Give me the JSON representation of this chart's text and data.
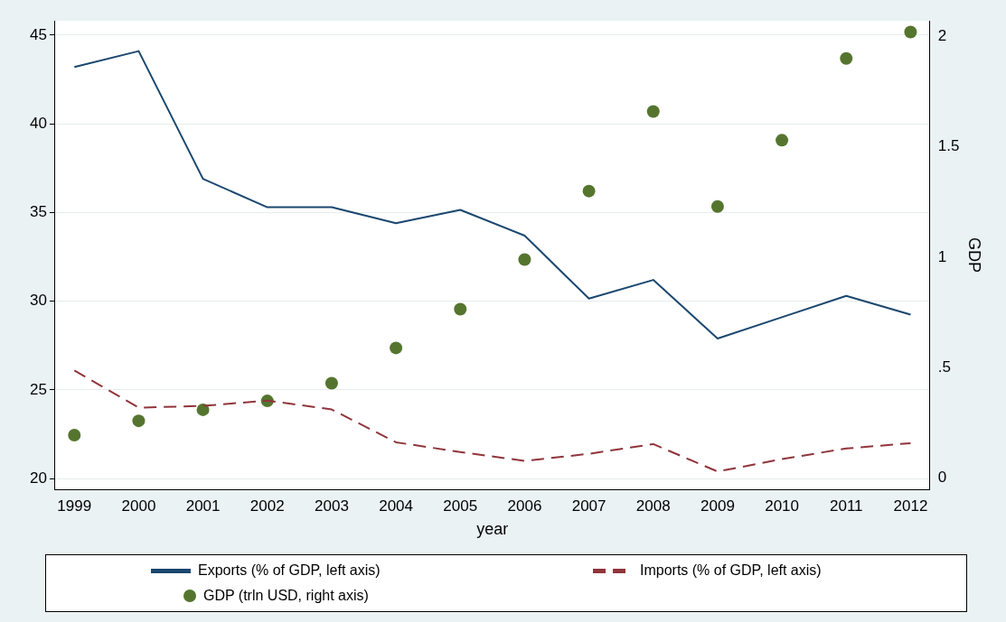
{
  "chart_data": {
    "type": "line",
    "xlabel": "year",
    "y2label": "GDP",
    "x": [
      1999,
      2000,
      2001,
      2002,
      2003,
      2004,
      2005,
      2006,
      2007,
      2008,
      2009,
      2010,
      2011,
      2012
    ],
    "xlim": [
      1998.7,
      2012.3
    ],
    "xticks": [
      1999,
      2000,
      2001,
      2002,
      2003,
      2004,
      2005,
      2006,
      2007,
      2008,
      2009,
      2010,
      2011,
      2012
    ],
    "ylim": [
      19.4,
      45.8
    ],
    "yticks": [
      20,
      25,
      30,
      35,
      40,
      45
    ],
    "y2lim": [
      -0.05,
      2.07
    ],
    "y2ticks": [
      0,
      {
        "value": 0.5,
        "label": ".5"
      },
      1,
      1.5,
      2
    ],
    "grid": "y",
    "legend": "bottom",
    "series": [
      {
        "name": "Exports (% of GDP, left axis)",
        "line_style": "solid",
        "marker": "none",
        "color": "#1a476f",
        "values": [
          43.2,
          44.1,
          36.9,
          35.3,
          35.3,
          34.4,
          35.15,
          33.7,
          30.15,
          31.2,
          27.9,
          29.1,
          30.3,
          29.25
        ]
      },
      {
        "name": "Imports (% of GDP, left axis)",
        "line_style": "dashed",
        "marker": "none",
        "color": "#90353b",
        "values": [
          26.1,
          24.0,
          24.1,
          24.4,
          23.9,
          22.05,
          21.5,
          21.0,
          21.4,
          21.95,
          20.4,
          21.1,
          21.7,
          22.0
        ]
      },
      {
        "name": "GDP (trln USD, right axis)",
        "type": "scatter",
        "marker": "circle",
        "axis": "y2",
        "color": "#55752f",
        "values": [
          0.195,
          0.26,
          0.31,
          0.35,
          0.43,
          0.59,
          0.765,
          0.99,
          1.3,
          1.66,
          1.23,
          1.53,
          1.9,
          2.02
        ]
      }
    ]
  }
}
